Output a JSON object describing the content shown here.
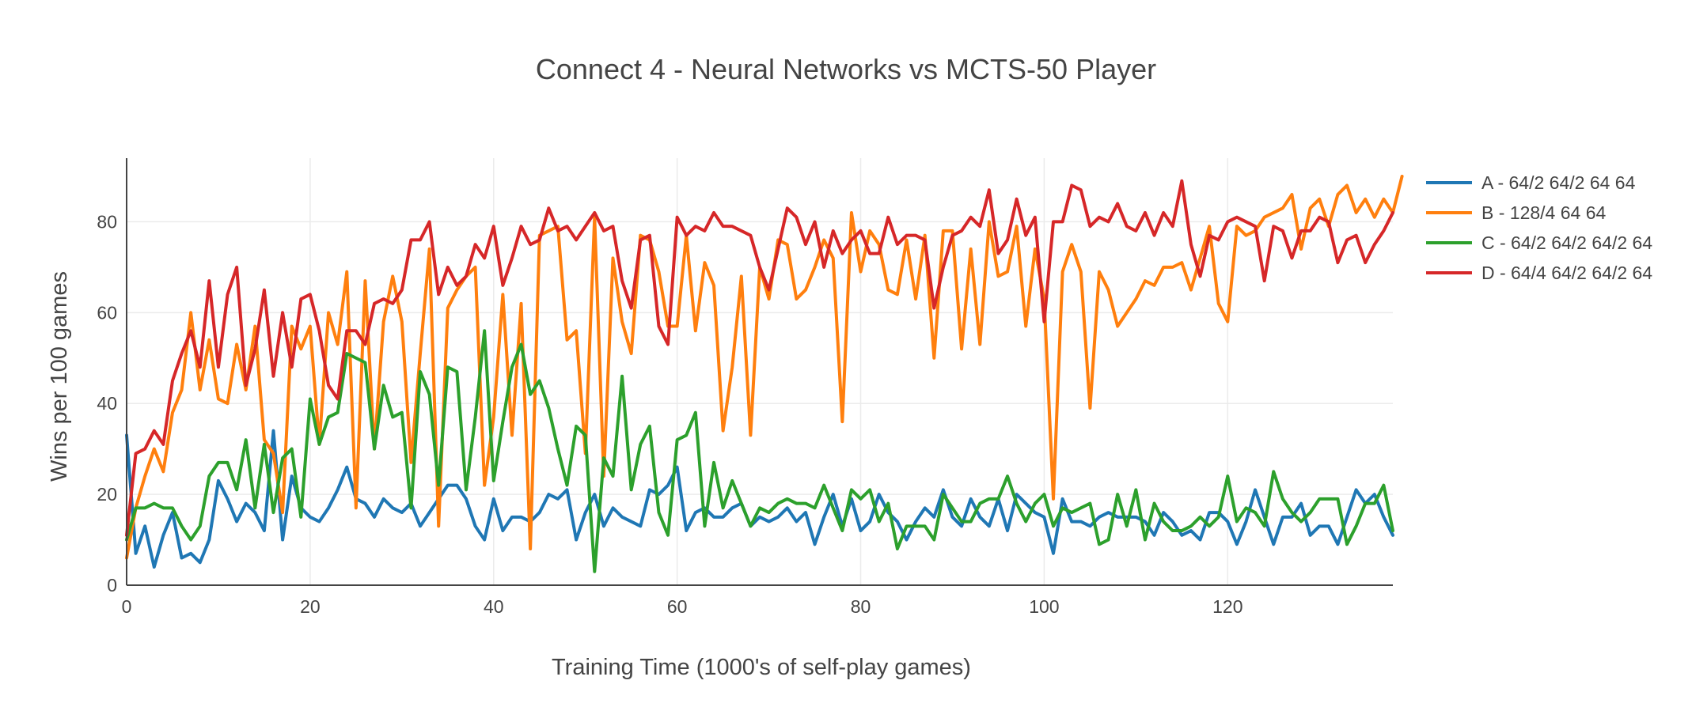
{
  "chart_data": {
    "type": "line",
    "title": "Connect 4 - Neural Networks vs MCTS-50 Player",
    "xlabel": "Training Time (1000's of self-play games)",
    "ylabel": "Wins per 100 games",
    "xlim": [
      0,
      138
    ],
    "ylim": [
      0,
      94
    ],
    "xticks": [
      0,
      20,
      40,
      60,
      80,
      100,
      120
    ],
    "yticks": [
      0,
      20,
      40,
      60,
      80
    ],
    "grid": true,
    "legend_position": "top-right",
    "series": [
      {
        "name": "A - 64/2 64/2 64 64",
        "color": "#1f77b4",
        "values": [
          33,
          7,
          13,
          4,
          11,
          16,
          6,
          7,
          5,
          10,
          23,
          19,
          14,
          18,
          16,
          12,
          34,
          10,
          24,
          17,
          15,
          14,
          17,
          21,
          26,
          19,
          18,
          15,
          19,
          17,
          16,
          18,
          13,
          16,
          19,
          22,
          22,
          19,
          13,
          10,
          19,
          12,
          15,
          15,
          14,
          16,
          20,
          19,
          21,
          10,
          16,
          20,
          13,
          17,
          15,
          14,
          13,
          21,
          20,
          22,
          26,
          12,
          16,
          17,
          15,
          15,
          17,
          18,
          13,
          15,
          14,
          15,
          17,
          14,
          16,
          9,
          15,
          20,
          13,
          19,
          12,
          14,
          20,
          16,
          14,
          10,
          14,
          17,
          15,
          21,
          15,
          13,
          19,
          15,
          13,
          19,
          12,
          20,
          18,
          16,
          15,
          7,
          19,
          14,
          14,
          13,
          15,
          16,
          15,
          15,
          15,
          14,
          11,
          16,
          14,
          11,
          12,
          10,
          16,
          16,
          14,
          9,
          14,
          21,
          15,
          9,
          15,
          15,
          18,
          11,
          13,
          13,
          9,
          15,
          21,
          18,
          20,
          15,
          11
        ]
      },
      {
        "name": "B - 128/4 64 64",
        "color": "#ff7f0e",
        "values": [
          6,
          17,
          24,
          30,
          25,
          38,
          43,
          60,
          43,
          54,
          41,
          40,
          53,
          43,
          57,
          32,
          29,
          16,
          57,
          52,
          57,
          31,
          60,
          53,
          69,
          17,
          67,
          30,
          58,
          68,
          58,
          27,
          51,
          74,
          13,
          61,
          65,
          68,
          70,
          22,
          37,
          64,
          33,
          62,
          8,
          77,
          78,
          79,
          54,
          56,
          29,
          81,
          24,
          72,
          58,
          51,
          77,
          76,
          69,
          57,
          57,
          77,
          56,
          71,
          66,
          34,
          48,
          68,
          33,
          70,
          63,
          76,
          75,
          63,
          65,
          70,
          76,
          72,
          36,
          82,
          69,
          78,
          75,
          65,
          64,
          76,
          63,
          77,
          50,
          78,
          78,
          52,
          74,
          53,
          80,
          68,
          69,
          79,
          57,
          74,
          63,
          19,
          69,
          75,
          69,
          39,
          69,
          65,
          57,
          60,
          63,
          67,
          66,
          70,
          70,
          71,
          65,
          72,
          79,
          62,
          58,
          79,
          77,
          78,
          81,
          82,
          83,
          86,
          74,
          83,
          85,
          79,
          86,
          88,
          82,
          85,
          81,
          85,
          82,
          90
        ]
      },
      {
        "name": "C - 64/2 64/2 64/2 64",
        "color": "#2ca02c",
        "values": [
          10,
          17,
          17,
          18,
          17,
          17,
          13,
          10,
          13,
          24,
          27,
          27,
          21,
          32,
          17,
          31,
          16,
          28,
          30,
          15,
          41,
          31,
          37,
          38,
          51,
          50,
          49,
          30,
          44,
          37,
          38,
          17,
          47,
          42,
          22,
          48,
          47,
          21,
          37,
          56,
          23,
          36,
          48,
          53,
          42,
          45,
          39,
          30,
          22,
          35,
          33,
          3,
          28,
          24,
          46,
          21,
          31,
          35,
          16,
          11,
          32,
          33,
          38,
          13,
          27,
          17,
          23,
          18,
          13,
          17,
          16,
          18,
          19,
          18,
          18,
          17,
          22,
          17,
          12,
          21,
          19,
          21,
          14,
          18,
          8,
          13,
          13,
          13,
          10,
          20,
          17,
          14,
          14,
          18,
          19,
          19,
          24,
          18,
          14,
          18,
          20,
          13,
          17,
          16,
          17,
          18,
          9,
          10,
          20,
          13,
          21,
          10,
          18,
          14,
          12,
          12,
          13,
          15,
          13,
          15,
          24,
          14,
          17,
          16,
          13,
          25,
          19,
          16,
          14,
          16,
          19,
          19,
          19,
          9,
          13,
          18,
          18,
          22,
          12
        ]
      },
      {
        "name": "D - 64/4 64/2 64/2 64",
        "color": "#d62728",
        "values": [
          11,
          29,
          30,
          34,
          31,
          45,
          51,
          56,
          48,
          67,
          48,
          64,
          70,
          44,
          52,
          65,
          46,
          60,
          48,
          63,
          64,
          56,
          44,
          41,
          56,
          56,
          53,
          62,
          63,
          62,
          65,
          76,
          76,
          80,
          64,
          70,
          66,
          68,
          75,
          72,
          79,
          66,
          72,
          79,
          75,
          76,
          83,
          78,
          79,
          76,
          79,
          82,
          78,
          79,
          67,
          61,
          76,
          77,
          57,
          53,
          81,
          77,
          79,
          78,
          82,
          79,
          79,
          78,
          77,
          70,
          65,
          74,
          83,
          81,
          75,
          80,
          70,
          78,
          73,
          76,
          78,
          73,
          73,
          81,
          75,
          77,
          77,
          76,
          61,
          70,
          77,
          78,
          81,
          79,
          87,
          73,
          76,
          85,
          77,
          81,
          58,
          80,
          80,
          88,
          87,
          79,
          81,
          80,
          84,
          79,
          78,
          82,
          77,
          82,
          79,
          89,
          75,
          68,
          77,
          76,
          80,
          81,
          80,
          79,
          67,
          79,
          78,
          72,
          78,
          78,
          81,
          80,
          71,
          76,
          77,
          71,
          75,
          78,
          82
        ]
      }
    ]
  }
}
